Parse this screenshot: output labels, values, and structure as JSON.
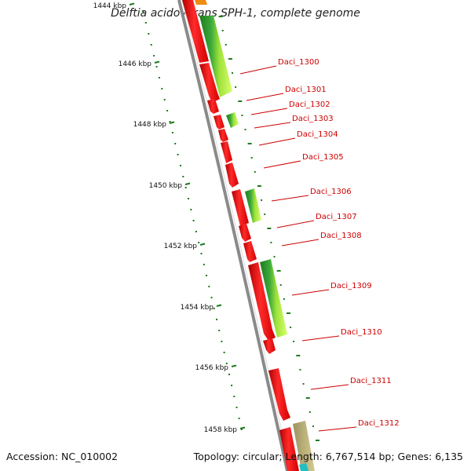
{
  "header": {
    "title": "Delftia acidovorans SPH-1, complete genome"
  },
  "footer": {
    "accession": "Accession: NC_010002",
    "summary": "Topology: circular; Length: 6,767,514 bp; Genes: 6,135"
  },
  "colors": {
    "forward_gene": "#ff2020",
    "reverse_gene": "#2f9a2f",
    "light_green": "#b6f040",
    "khaki": "#c6bb80",
    "backbone": "#8a8a8a",
    "label": "#cc0000",
    "tick": "#1f7a1f"
  },
  "scale": {
    "labels": [
      "1444 kbp",
      "1446 kbp",
      "1448 kbp",
      "1450 kbp",
      "1452 kbp",
      "1454 kbp",
      "1456 kbp",
      "1458 kbp"
    ]
  },
  "genes": {
    "labels": [
      "Daci_1300",
      "Daci_1301",
      "Daci_1302",
      "Daci_1303",
      "Daci_1304",
      "Daci_1305",
      "Daci_1306",
      "Daci_1307",
      "Daci_1308",
      "Daci_1309",
      "Daci_1310",
      "Daci_1311",
      "Daci_1312"
    ]
  }
}
